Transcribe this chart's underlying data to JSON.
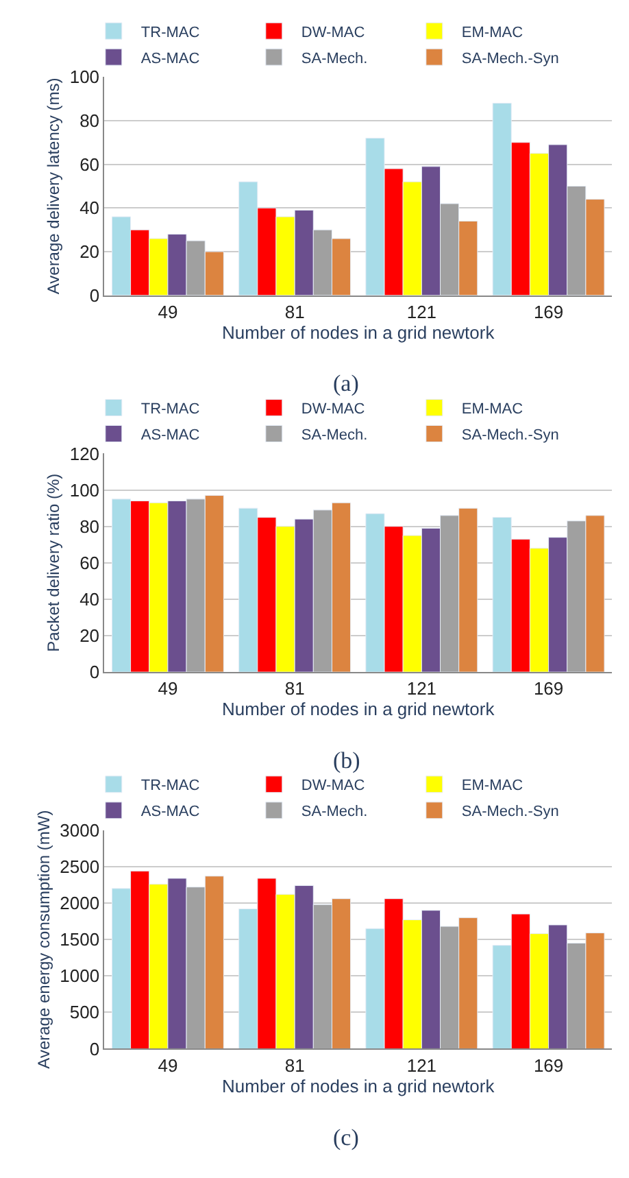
{
  "chart_data": [
    {
      "type": "bar",
      "categories": [
        "49",
        "81",
        "121",
        "169"
      ],
      "xlabel": "Number of nodes in a grid newtork",
      "ylabel": "Average delivery latency (ms)",
      "ylim": [
        0,
        100
      ],
      "yticks": [
        0,
        20,
        40,
        60,
        80,
        100
      ],
      "grid": "y",
      "legend": "top",
      "annotations": [
        "(a)"
      ],
      "series": [
        {
          "name": "TR-MAC",
          "color": "#a8dce8",
          "values": [
            36,
            52,
            72,
            88
          ]
        },
        {
          "name": "DW-MAC",
          "color": "#ff0000",
          "values": [
            30,
            40,
            58,
            70
          ]
        },
        {
          "name": "EM-MAC",
          "color": "#ffff00",
          "values": [
            26,
            36,
            52,
            65
          ]
        },
        {
          "name": "AS-MAC",
          "color": "#6b4f8e",
          "values": [
            28,
            39,
            59,
            69
          ]
        },
        {
          "name": "SA-Mech.",
          "color": "#a0a0a0",
          "values": [
            25,
            30,
            42,
            50
          ]
        },
        {
          "name": "SA-Mech.-Syn",
          "color": "#dc8440",
          "values": [
            20,
            26,
            34,
            44
          ]
        }
      ]
    },
    {
      "type": "bar",
      "categories": [
        "49",
        "81",
        "121",
        "169"
      ],
      "xlabel": "Number of nodes in a grid newtork",
      "ylabel": "Packet delivery ratio (%)",
      "ylim": [
        0,
        120
      ],
      "yticks": [
        0,
        20,
        40,
        60,
        80,
        100,
        120
      ],
      "grid": "y",
      "legend": "top",
      "annotations": [
        "(b)"
      ],
      "series": [
        {
          "name": "TR-MAC",
          "color": "#a8dce8",
          "values": [
            95,
            90,
            87,
            85
          ]
        },
        {
          "name": "DW-MAC",
          "color": "#ff0000",
          "values": [
            94,
            85,
            80,
            73
          ]
        },
        {
          "name": "EM-MAC",
          "color": "#ffff00",
          "values": [
            93,
            80,
            75,
            68
          ]
        },
        {
          "name": "AS-MAC",
          "color": "#6b4f8e",
          "values": [
            94,
            84,
            79,
            74
          ]
        },
        {
          "name": "SA-Mech.",
          "color": "#a0a0a0",
          "values": [
            95,
            89,
            86,
            83
          ]
        },
        {
          "name": "SA-Mech.-Syn",
          "color": "#dc8440",
          "values": [
            97,
            93,
            90,
            86
          ]
        }
      ]
    },
    {
      "type": "bar",
      "categories": [
        "49",
        "81",
        "121",
        "169"
      ],
      "xlabel": "Number of nodes in a grid newtork",
      "ylabel": "Average energy consumption (mW)",
      "ylim": [
        0,
        3000
      ],
      "yticks": [
        0,
        500,
        1000,
        1500,
        2000,
        2500,
        3000
      ],
      "grid": "y",
      "legend": "top",
      "annotations": [
        "(c)"
      ],
      "series": [
        {
          "name": "TR-MAC",
          "color": "#a8dce8",
          "values": [
            2200,
            1920,
            1650,
            1420
          ]
        },
        {
          "name": "DW-MAC",
          "color": "#ff0000",
          "values": [
            2440,
            2340,
            2060,
            1850
          ]
        },
        {
          "name": "EM-MAC",
          "color": "#ffff00",
          "values": [
            2260,
            2120,
            1770,
            1580
          ]
        },
        {
          "name": "AS-MAC",
          "color": "#6b4f8e",
          "values": [
            2340,
            2240,
            1900,
            1700
          ]
        },
        {
          "name": "SA-Mech.",
          "color": "#a0a0a0",
          "values": [
            2220,
            1980,
            1680,
            1450
          ]
        },
        {
          "name": "SA-Mech.-Syn",
          "color": "#dc8440",
          "values": [
            2370,
            2060,
            1800,
            1590
          ]
        }
      ]
    }
  ]
}
